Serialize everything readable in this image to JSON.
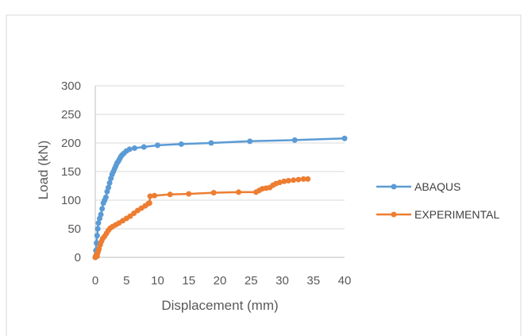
{
  "chart_data": {
    "type": "scatter",
    "title": "",
    "xlabel": "Displacement (mm)",
    "ylabel": "Load (kN)",
    "xlim": [
      0,
      40
    ],
    "ylim": [
      0,
      300
    ],
    "x_ticks": [
      "0",
      "5",
      "10",
      "15",
      "20",
      "25",
      "30",
      "35",
      "40"
    ],
    "y_ticks": [
      "0",
      "50",
      "100",
      "150",
      "200",
      "250",
      "300"
    ],
    "x_tick_values": [
      0,
      5,
      10,
      15,
      20,
      25,
      30,
      35,
      40
    ],
    "y_tick_values": [
      0,
      50,
      100,
      150,
      200,
      250,
      300
    ],
    "grid": "horizontal",
    "legend_position": "right",
    "series": [
      {
        "name": "ABAQUS",
        "color": "#5B9BD5",
        "points": [
          [
            0,
            0
          ],
          [
            0.1,
            12
          ],
          [
            0.2,
            25
          ],
          [
            0.3,
            38
          ],
          [
            0.4,
            50
          ],
          [
            0.5,
            60
          ],
          [
            0.7,
            68
          ],
          [
            0.9,
            75
          ],
          [
            1.1,
            85
          ],
          [
            1.3,
            95
          ],
          [
            1.5,
            100
          ],
          [
            1.7,
            105
          ],
          [
            1.9,
            115
          ],
          [
            2.1,
            122
          ],
          [
            2.3,
            130
          ],
          [
            2.5,
            138
          ],
          [
            2.7,
            145
          ],
          [
            2.9,
            150
          ],
          [
            3.1,
            155
          ],
          [
            3.3,
            160
          ],
          [
            3.5,
            165
          ],
          [
            3.7,
            168
          ],
          [
            3.9,
            172
          ],
          [
            4.1,
            176
          ],
          [
            4.3,
            179
          ],
          [
            4.6,
            182
          ],
          [
            5.0,
            186
          ],
          [
            5.5,
            189
          ],
          [
            6.3,
            191
          ],
          [
            7.8,
            193
          ],
          [
            10.0,
            196
          ],
          [
            13.8,
            198
          ],
          [
            18.6,
            200
          ],
          [
            24.8,
            203
          ],
          [
            32.0,
            205
          ],
          [
            40.0,
            208
          ]
        ]
      },
      {
        "name": "EXPERIMENTAL",
        "color": "#ED7D31",
        "points": [
          [
            0,
            0
          ],
          [
            0.1,
            3
          ],
          [
            0.2,
            5
          ],
          [
            0.3,
            2
          ],
          [
            0.4,
            8
          ],
          [
            0.5,
            12
          ],
          [
            0.6,
            15
          ],
          [
            0.8,
            22
          ],
          [
            1.0,
            28
          ],
          [
            1.2,
            33
          ],
          [
            1.5,
            37
          ],
          [
            1.8,
            42
          ],
          [
            2.1,
            47
          ],
          [
            2.4,
            51
          ],
          [
            2.8,
            54
          ],
          [
            3.3,
            57
          ],
          [
            3.8,
            60
          ],
          [
            4.4,
            64
          ],
          [
            5.0,
            68
          ],
          [
            5.6,
            72
          ],
          [
            6.2,
            77
          ],
          [
            6.8,
            82
          ],
          [
            7.4,
            86
          ],
          [
            8.0,
            90
          ],
          [
            8.5,
            94
          ],
          [
            8.7,
            95
          ],
          [
            8.8,
            107
          ],
          [
            9.5,
            108
          ],
          [
            12.0,
            110
          ],
          [
            15.0,
            111
          ],
          [
            19.0,
            113
          ],
          [
            23.0,
            114
          ],
          [
            25.8,
            114
          ],
          [
            26.3,
            117
          ],
          [
            26.8,
            120
          ],
          [
            27.4,
            121
          ],
          [
            28.0,
            122
          ],
          [
            28.5,
            126
          ],
          [
            29.0,
            129
          ],
          [
            29.6,
            131
          ],
          [
            30.3,
            133
          ],
          [
            31.0,
            134
          ],
          [
            31.8,
            135
          ],
          [
            32.6,
            136
          ],
          [
            33.4,
            137
          ],
          [
            34.1,
            137
          ]
        ]
      }
    ]
  }
}
